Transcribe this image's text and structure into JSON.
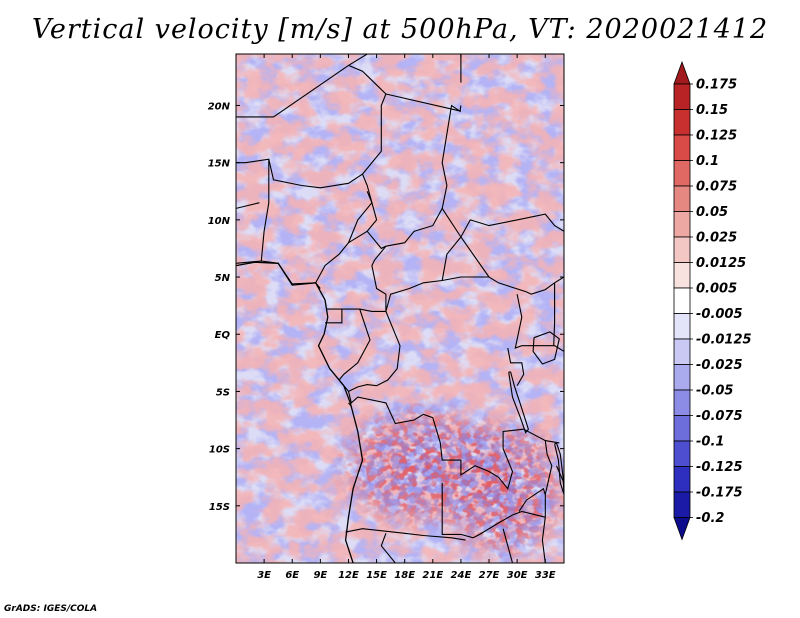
{
  "chart_data": {
    "type": "heatmap",
    "title": "Vertical velocity [m/s] at 500hPa, VT: 2020021412",
    "xlabel": "",
    "ylabel": "",
    "variable": "vertical velocity",
    "units": "m/s",
    "level": "500hPa",
    "valid_time": "2020021412",
    "xlim": [
      0,
      35
    ],
    "ylim": [
      -20,
      24.5
    ],
    "x_ticks": [
      {
        "value": 3,
        "label": "3E"
      },
      {
        "value": 6,
        "label": "6E"
      },
      {
        "value": 9,
        "label": "9E"
      },
      {
        "value": 12,
        "label": "12E"
      },
      {
        "value": 15,
        "label": "15E"
      },
      {
        "value": 18,
        "label": "18E"
      },
      {
        "value": 21,
        "label": "21E"
      },
      {
        "value": 24,
        "label": "24E"
      },
      {
        "value": 27,
        "label": "27E"
      },
      {
        "value": 30,
        "label": "30E"
      },
      {
        "value": 33,
        "label": "33E"
      }
    ],
    "y_ticks": [
      {
        "value": 20,
        "label": "20N"
      },
      {
        "value": 15,
        "label": "15N"
      },
      {
        "value": 10,
        "label": "10N"
      },
      {
        "value": 5,
        "label": "5N"
      },
      {
        "value": 0,
        "label": "EQ"
      },
      {
        "value": -5,
        "label": "5S"
      },
      {
        "value": -10,
        "label": "10S"
      },
      {
        "value": -15,
        "label": "15S"
      }
    ],
    "colorbar": {
      "levels": [
        "0.175",
        "0.15",
        "0.125",
        "0.1",
        "0.075",
        "0.05",
        "0.025",
        "0.0125",
        "0.005",
        "-0.005",
        "-0.0125",
        "-0.025",
        "-0.05",
        "-0.075",
        "-0.1",
        "-0.125",
        "-0.175",
        "-0.2"
      ],
      "colors": [
        "#a01a1e",
        "#b82326",
        "#c8302f",
        "#d84b46",
        "#e06a63",
        "#e68882",
        "#eda8a4",
        "#f3c7c4",
        "#f8e2e0",
        "#ffffff",
        "#e3e3fa",
        "#c9c9f4",
        "#aaaaee",
        "#8c8ce6",
        "#6d6ddc",
        "#4e4ed0",
        "#2f2fbf",
        "#1a1aa6",
        "#0c0c8c"
      ]
    }
  },
  "credit": "GrADS: IGES/COLA"
}
